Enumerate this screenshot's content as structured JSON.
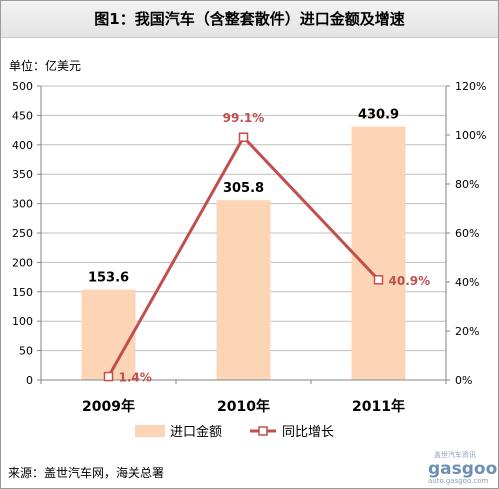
{
  "title": "图1：我国汽车（含整套散件）进口金额及增速",
  "unit_label": "单位：亿美元",
  "source": "来源：盖世汽车网，海关总署",
  "watermark": {
    "top": "盖世汽车资讯",
    "brand": "gasgoo",
    "url": "auto.gasgoo.com"
  },
  "colors": {
    "bar": "#fbd5b5",
    "line": "#c0504d",
    "label": "#c0504d",
    "grid": "#bfbfbf",
    "axis": "#868686"
  },
  "chart_data": {
    "type": "bar",
    "categories": [
      "2009年",
      "2010年",
      "2011年"
    ],
    "series": [
      {
        "name": "进口金额",
        "type": "bar",
        "axis": "left",
        "values": [
          153.6,
          305.8,
          430.9
        ],
        "labels": [
          "153.6",
          "305.8",
          "430.9"
        ]
      },
      {
        "name": "同比增长",
        "type": "line",
        "axis": "right",
        "values": [
          1.4,
          99.1,
          40.9
        ],
        "labels": [
          "1.4%",
          "99.1%",
          "40.9%"
        ]
      }
    ],
    "y_left": {
      "min": 0,
      "max": 500,
      "step": 50,
      "ticks": [
        "0",
        "50",
        "100",
        "150",
        "200",
        "250",
        "300",
        "350",
        "400",
        "450",
        "500"
      ]
    },
    "y_right": {
      "min": 0,
      "max": 120,
      "step": 20,
      "ticks": [
        "0%",
        "20%",
        "40%",
        "60%",
        "80%",
        "100%",
        "120%"
      ]
    },
    "grid": true,
    "legend_position": "bottom"
  }
}
